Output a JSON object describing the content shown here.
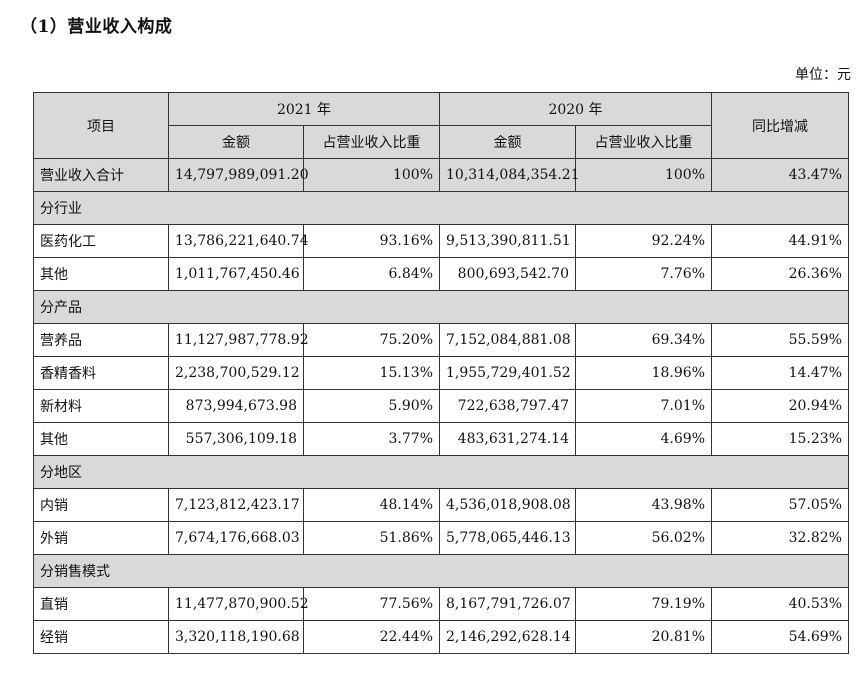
{
  "title": "（1）营业收入构成",
  "unit_label": "单位：元",
  "headers": {
    "item": "项目",
    "year_2021": "2021 年",
    "year_2020": "2020 年",
    "yoy": "同比增减",
    "amount": "金额",
    "share": "占营业收入比重"
  },
  "total": {
    "label": "营业收入合计",
    "amt_2021": "14,797,989,091.20",
    "pct_2021": "100%",
    "amt_2020": "10,314,084,354.21",
    "pct_2020": "100%",
    "yoy": "43.47%"
  },
  "sections": [
    {
      "title": "分行业",
      "rows": [
        {
          "label": "医药化工",
          "amt_2021": "13,786,221,640.74",
          "pct_2021": "93.16%",
          "amt_2020": "9,513,390,811.51",
          "pct_2020": "92.24%",
          "yoy": "44.91%"
        },
        {
          "label": "其他",
          "amt_2021": "1,011,767,450.46",
          "pct_2021": "6.84%",
          "amt_2020": "800,693,542.70",
          "pct_2020": "7.76%",
          "yoy": "26.36%"
        }
      ]
    },
    {
      "title": "分产品",
      "rows": [
        {
          "label": "营养品",
          "amt_2021": "11,127,987,778.92",
          "pct_2021": "75.20%",
          "amt_2020": "7,152,084,881.08",
          "pct_2020": "69.34%",
          "yoy": "55.59%"
        },
        {
          "label": "香精香料",
          "amt_2021": "2,238,700,529.12",
          "pct_2021": "15.13%",
          "amt_2020": "1,955,729,401.52",
          "pct_2020": "18.96%",
          "yoy": "14.47%"
        },
        {
          "label": "新材料",
          "amt_2021": "873,994,673.98",
          "pct_2021": "5.90%",
          "amt_2020": "722,638,797.47",
          "pct_2020": "7.01%",
          "yoy": "20.94%"
        },
        {
          "label": "其他",
          "amt_2021": "557,306,109.18",
          "pct_2021": "3.77%",
          "amt_2020": "483,631,274.14",
          "pct_2020": "4.69%",
          "yoy": "15.23%"
        }
      ]
    },
    {
      "title": "分地区",
      "rows": [
        {
          "label": "内销",
          "amt_2021": "7,123,812,423.17",
          "pct_2021": "48.14%",
          "amt_2020": "4,536,018,908.08",
          "pct_2020": "43.98%",
          "yoy": "57.05%"
        },
        {
          "label": "外销",
          "amt_2021": "7,674,176,668.03",
          "pct_2021": "51.86%",
          "amt_2020": "5,778,065,446.13",
          "pct_2020": "56.02%",
          "yoy": "32.82%"
        }
      ]
    },
    {
      "title": "分销售模式",
      "rows": [
        {
          "label": "直销",
          "amt_2021": "11,477,870,900.52",
          "pct_2021": "77.56%",
          "amt_2020": "8,167,791,726.07",
          "pct_2020": "79.19%",
          "yoy": "40.53%"
        },
        {
          "label": "经销",
          "amt_2021": "3,320,118,190.68",
          "pct_2021": "22.44%",
          "amt_2020": "2,146,292,628.14",
          "pct_2020": "20.81%",
          "yoy": "54.69%"
        }
      ]
    }
  ]
}
